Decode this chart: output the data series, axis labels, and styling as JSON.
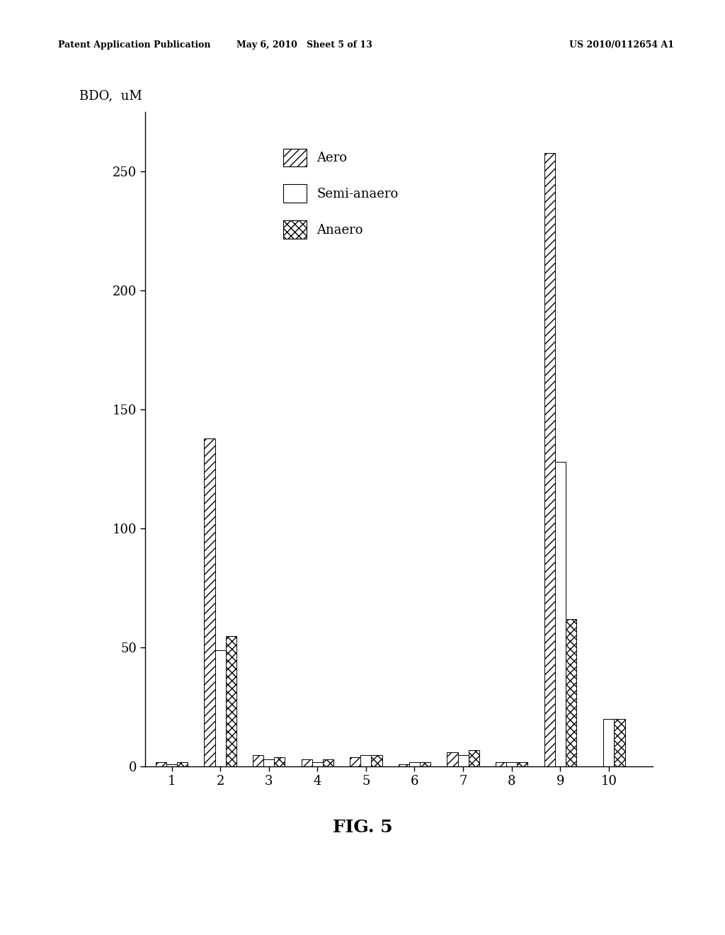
{
  "categories": [
    1,
    2,
    3,
    4,
    5,
    6,
    7,
    8,
    9,
    10
  ],
  "aero": [
    2,
    138,
    5,
    3,
    4,
    1,
    6,
    2,
    258,
    0
  ],
  "semi_anaero": [
    1,
    49,
    3,
    2,
    5,
    2,
    5,
    2,
    128,
    20
  ],
  "anaero": [
    2,
    55,
    4,
    3,
    5,
    2,
    7,
    2,
    62,
    20
  ],
  "ylabel": "BDO,  uM",
  "ylim": [
    0,
    275
  ],
  "yticks": [
    0,
    50,
    100,
    150,
    200,
    250
  ],
  "xticks": [
    1,
    2,
    3,
    4,
    5,
    6,
    7,
    8,
    9,
    10
  ],
  "legend_labels": [
    "Aero",
    "Semi-anaero",
    "Anaero"
  ],
  "figure_caption": "FIG. 5",
  "bar_width": 0.22,
  "background_color": "#ffffff",
  "header_left": "Patent Application Publication",
  "header_mid": "May 6, 2010   Sheet 5 of 13",
  "header_right": "US 2010/0112654 A1"
}
